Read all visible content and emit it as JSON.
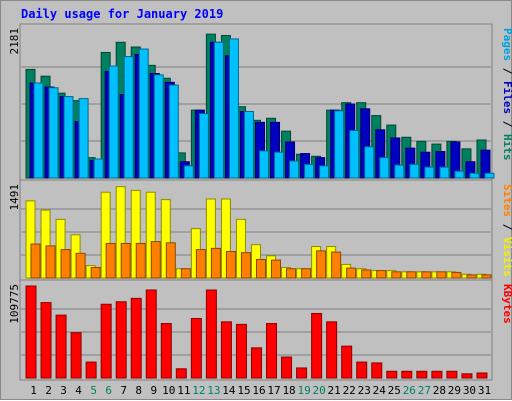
{
  "chart_data": {
    "type": "bar",
    "title": "Daily usage for January 2019",
    "categories": [
      "1",
      "2",
      "3",
      "4",
      "5",
      "6",
      "7",
      "8",
      "9",
      "10",
      "11",
      "12",
      "13",
      "14",
      "15",
      "16",
      "17",
      "18",
      "19",
      "20",
      "21",
      "22",
      "23",
      "24",
      "25",
      "26",
      "27",
      "28",
      "29",
      "30",
      "31"
    ],
    "weekend_days": [
      "5",
      "6",
      "12",
      "13",
      "19",
      "20",
      "26",
      "27"
    ],
    "panels": [
      {
        "ymax_label": "2181",
        "ylim": [
          0,
          2181
        ],
        "right_label": [
          {
            "text": "Pages",
            "color": "#00a0e0"
          },
          {
            "text": " / ",
            "color": "#000000"
          },
          {
            "text": "Files",
            "color": "#0000c0"
          },
          {
            "text": " / ",
            "color": "#000000"
          },
          {
            "text": "Hits",
            "color": "#008060"
          }
        ],
        "series": [
          {
            "name": "Hits",
            "color": "#008060",
            "values": [
              1600,
              1500,
              1250,
              1140,
              300,
              1850,
              2000,
              1930,
              1660,
              1470,
              370,
              1000,
              2120,
              2100,
              1050,
              850,
              880,
              690,
              350,
              320,
              1000,
              1110,
              1110,
              920,
              780,
              600,
              540,
              500,
              540,
              430,
              560
            ]
          },
          {
            "name": "Files",
            "color": "#0000c0",
            "values": [
              1400,
              1340,
              1200,
              830,
              260,
              1570,
              1230,
              1820,
              1540,
              1410,
              240,
              1000,
              2000,
              1800,
              980,
              820,
              820,
              530,
              360,
              300,
              1000,
              1090,
              1020,
              710,
              590,
              440,
              380,
              390,
              530,
              240,
              410
            ]
          },
          {
            "name": "Pages",
            "color": "#00c0ff",
            "values": [
              1400,
              1330,
              1200,
              1170,
              280,
              1650,
              1790,
              1900,
              1520,
              1370,
              180,
              950,
              2000,
              2050,
              980,
              400,
              380,
              250,
              200,
              180,
              990,
              700,
              460,
              300,
              190,
              200,
              160,
              160,
              100,
              70,
              70
            ]
          }
        ]
      },
      {
        "ymax_label": "1491",
        "ylim": [
          0,
          1491
        ],
        "right_label": [
          {
            "text": "Sites",
            "color": "#ff8000"
          },
          {
            "text": " / ",
            "color": "#000000"
          },
          {
            "text": "Visits",
            "color": "#f0f000"
          }
        ],
        "series": [
          {
            "name": "Visits",
            "color": "#ffff00",
            "values": [
              1250,
              1100,
              950,
              700,
              200,
              1390,
              1480,
              1420,
              1390,
              1270,
              150,
              800,
              1280,
              1280,
              950,
              540,
              360,
              170,
              150,
              510,
              510,
              220,
              150,
              120,
              120,
              100,
              100,
              100,
              100,
              60,
              60
            ]
          },
          {
            "name": "Sites",
            "color": "#ff8000",
            "values": [
              550,
              520,
              460,
              400,
              170,
              560,
              560,
              560,
              590,
              570,
              150,
              460,
              480,
              430,
              410,
              300,
              290,
              150,
              150,
              440,
              420,
              160,
              130,
              120,
              100,
              100,
              100,
              100,
              90,
              50,
              50
            ]
          }
        ]
      },
      {
        "ymax_label": "109775",
        "ylim": [
          0,
          109775
        ],
        "right_label": [
          {
            "text": "KBytes",
            "color": "#ff0000"
          }
        ],
        "series": [
          {
            "name": "KBytes",
            "color": "#ff0000",
            "values": [
              109775,
              90000,
              75000,
              54000,
              19000,
              88000,
              91000,
              95000,
              105000,
              65000,
              11000,
              71000,
              105000,
              67000,
              64000,
              36000,
              65000,
              25000,
              12000,
              77000,
              67000,
              38000,
              19000,
              18000,
              8000,
              8000,
              8000,
              8000,
              8000,
              5000,
              6000
            ]
          }
        ]
      }
    ],
    "grid": true
  }
}
